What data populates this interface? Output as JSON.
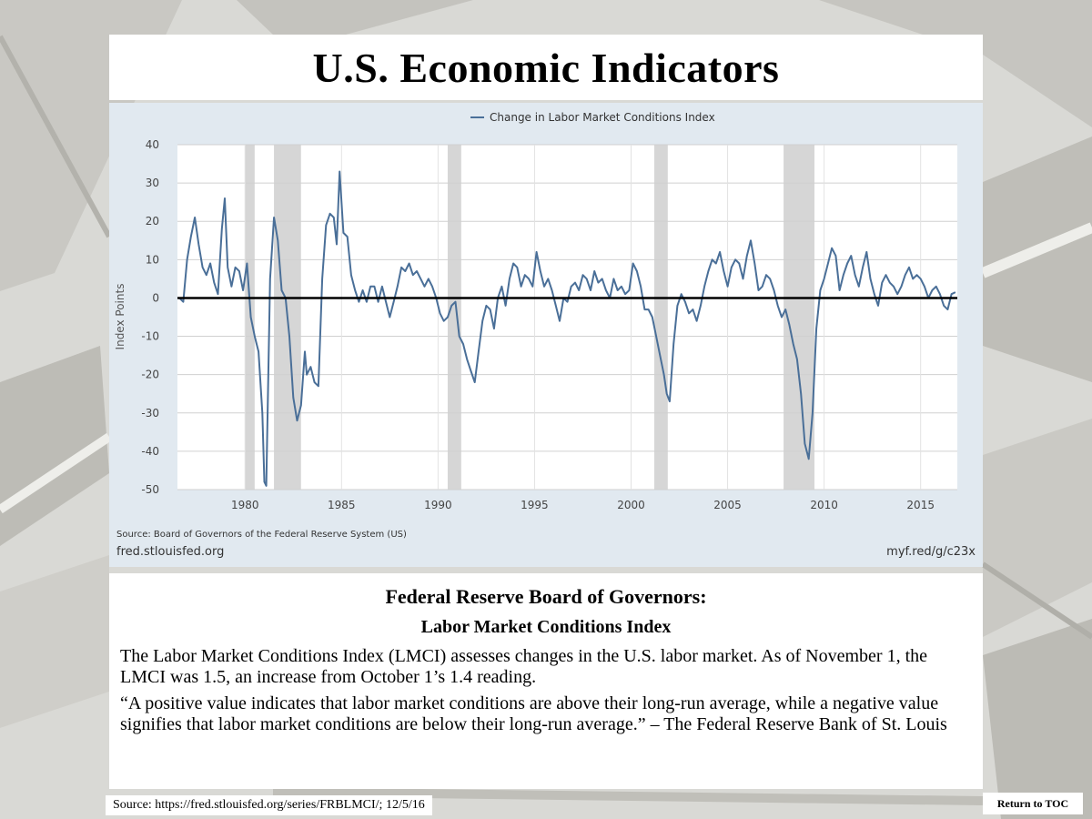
{
  "slide": {
    "title": "U.S. Economic Indicators"
  },
  "colors": {
    "series": "#4a6f98",
    "zero_line": "#000000",
    "recession_band": "#d6d6d6",
    "chart_background": "#e1e9f0",
    "plot_background": "#ffffff"
  },
  "chart_data": {
    "type": "line",
    "title": "",
    "xlabel": "",
    "ylabel": "Index Points",
    "xlim": [
      1976.5,
      2016.9
    ],
    "ylim": [
      -50,
      40
    ],
    "x_ticks": [
      1980,
      1985,
      1990,
      1995,
      2000,
      2005,
      2010,
      2015
    ],
    "y_ticks": [
      40,
      30,
      20,
      10,
      0,
      -10,
      -20,
      -30,
      -40,
      -50
    ],
    "grid": true,
    "legend_position": "top-center",
    "reference_line_y": 0,
    "recession_shading": [
      [
        1980.0,
        1980.5
      ],
      [
        1981.5,
        1982.9
      ],
      [
        1990.5,
        1991.2
      ],
      [
        2001.2,
        2001.9
      ],
      [
        2007.9,
        2009.5
      ]
    ],
    "series": [
      {
        "name": "Change in Labor Market Conditions Index",
        "points": [
          [
            1976.6,
            0
          ],
          [
            1976.8,
            -1
          ],
          [
            1977.0,
            10
          ],
          [
            1977.2,
            16
          ],
          [
            1977.4,
            21
          ],
          [
            1977.6,
            14
          ],
          [
            1977.8,
            8
          ],
          [
            1978.0,
            6
          ],
          [
            1978.2,
            9
          ],
          [
            1978.4,
            4
          ],
          [
            1978.6,
            1
          ],
          [
            1978.8,
            18
          ],
          [
            1978.95,
            26
          ],
          [
            1979.1,
            8
          ],
          [
            1979.3,
            3
          ],
          [
            1979.5,
            8
          ],
          [
            1979.7,
            7
          ],
          [
            1979.9,
            2
          ],
          [
            1980.1,
            9
          ],
          [
            1980.3,
            -5
          ],
          [
            1980.5,
            -10
          ],
          [
            1980.7,
            -14
          ],
          [
            1980.9,
            -30
          ],
          [
            1981.0,
            -48
          ],
          [
            1981.1,
            -49
          ],
          [
            1981.3,
            5
          ],
          [
            1981.5,
            21
          ],
          [
            1981.7,
            15
          ],
          [
            1981.9,
            2
          ],
          [
            1982.1,
            0
          ],
          [
            1982.3,
            -10
          ],
          [
            1982.5,
            -26
          ],
          [
            1982.7,
            -32
          ],
          [
            1982.9,
            -28
          ],
          [
            1983.1,
            -14
          ],
          [
            1983.2,
            -20
          ],
          [
            1983.4,
            -18
          ],
          [
            1983.6,
            -22
          ],
          [
            1983.8,
            -23
          ],
          [
            1984.0,
            5
          ],
          [
            1984.2,
            19
          ],
          [
            1984.4,
            22
          ],
          [
            1984.6,
            21
          ],
          [
            1984.75,
            14
          ],
          [
            1984.9,
            33
          ],
          [
            1985.1,
            17
          ],
          [
            1985.3,
            16
          ],
          [
            1985.5,
            6
          ],
          [
            1985.7,
            2
          ],
          [
            1985.9,
            -1
          ],
          [
            1986.1,
            2
          ],
          [
            1986.3,
            -1
          ],
          [
            1986.5,
            3
          ],
          [
            1986.7,
            3
          ],
          [
            1986.9,
            -1
          ],
          [
            1987.1,
            3
          ],
          [
            1987.3,
            -1
          ],
          [
            1987.5,
            -5
          ],
          [
            1987.7,
            -1
          ],
          [
            1987.9,
            3
          ],
          [
            1988.1,
            8
          ],
          [
            1988.3,
            7
          ],
          [
            1988.5,
            9
          ],
          [
            1988.7,
            6
          ],
          [
            1988.9,
            7
          ],
          [
            1989.1,
            5
          ],
          [
            1989.3,
            3
          ],
          [
            1989.5,
            5
          ],
          [
            1989.7,
            3
          ],
          [
            1989.9,
            0
          ],
          [
            1990.1,
            -4
          ],
          [
            1990.3,
            -6
          ],
          [
            1990.5,
            -5
          ],
          [
            1990.7,
            -2
          ],
          [
            1990.9,
            -1
          ],
          [
            1991.1,
            -10
          ],
          [
            1991.3,
            -12
          ],
          [
            1991.5,
            -16
          ],
          [
            1991.7,
            -19
          ],
          [
            1991.9,
            -22
          ],
          [
            1992.1,
            -14
          ],
          [
            1992.3,
            -6
          ],
          [
            1992.5,
            -2
          ],
          [
            1992.7,
            -3
          ],
          [
            1992.9,
            -8
          ],
          [
            1993.1,
            0
          ],
          [
            1993.3,
            3
          ],
          [
            1993.5,
            -2
          ],
          [
            1993.7,
            5
          ],
          [
            1993.9,
            9
          ],
          [
            1994.1,
            8
          ],
          [
            1994.3,
            3
          ],
          [
            1994.5,
            6
          ],
          [
            1994.7,
            5
          ],
          [
            1994.9,
            3
          ],
          [
            1995.1,
            12
          ],
          [
            1995.3,
            7
          ],
          [
            1995.5,
            3
          ],
          [
            1995.7,
            5
          ],
          [
            1995.9,
            2
          ],
          [
            1996.1,
            -2
          ],
          [
            1996.3,
            -6
          ],
          [
            1996.5,
            0
          ],
          [
            1996.7,
            -1
          ],
          [
            1996.9,
            3
          ],
          [
            1997.1,
            4
          ],
          [
            1997.3,
            2
          ],
          [
            1997.5,
            6
          ],
          [
            1997.7,
            5
          ],
          [
            1997.9,
            2
          ],
          [
            1998.1,
            7
          ],
          [
            1998.3,
            4
          ],
          [
            1998.5,
            5
          ],
          [
            1998.7,
            2
          ],
          [
            1998.9,
            0
          ],
          [
            1999.1,
            5
          ],
          [
            1999.3,
            2
          ],
          [
            1999.5,
            3
          ],
          [
            1999.7,
            1
          ],
          [
            1999.9,
            2
          ],
          [
            2000.1,
            9
          ],
          [
            2000.3,
            7
          ],
          [
            2000.5,
            3
          ],
          [
            2000.7,
            -3
          ],
          [
            2000.9,
            -3
          ],
          [
            2001.1,
            -5
          ],
          [
            2001.3,
            -10
          ],
          [
            2001.5,
            -15
          ],
          [
            2001.7,
            -20
          ],
          [
            2001.85,
            -25
          ],
          [
            2002.0,
            -27
          ],
          [
            2002.2,
            -12
          ],
          [
            2002.4,
            -2
          ],
          [
            2002.6,
            1
          ],
          [
            2002.8,
            -1
          ],
          [
            2003.0,
            -4
          ],
          [
            2003.2,
            -3
          ],
          [
            2003.4,
            -6
          ],
          [
            2003.6,
            -2
          ],
          [
            2003.8,
            3
          ],
          [
            2004.0,
            7
          ],
          [
            2004.2,
            10
          ],
          [
            2004.4,
            9
          ],
          [
            2004.6,
            12
          ],
          [
            2004.8,
            7
          ],
          [
            2005.0,
            3
          ],
          [
            2005.2,
            8
          ],
          [
            2005.4,
            10
          ],
          [
            2005.6,
            9
          ],
          [
            2005.8,
            5
          ],
          [
            2006.0,
            11
          ],
          [
            2006.2,
            15
          ],
          [
            2006.4,
            9
          ],
          [
            2006.6,
            2
          ],
          [
            2006.8,
            3
          ],
          [
            2007.0,
            6
          ],
          [
            2007.2,
            5
          ],
          [
            2007.4,
            2
          ],
          [
            2007.6,
            -2
          ],
          [
            2007.8,
            -5
          ],
          [
            2008.0,
            -3
          ],
          [
            2008.2,
            -7
          ],
          [
            2008.4,
            -12
          ],
          [
            2008.6,
            -16
          ],
          [
            2008.8,
            -25
          ],
          [
            2009.0,
            -38
          ],
          [
            2009.2,
            -42
          ],
          [
            2009.4,
            -30
          ],
          [
            2009.6,
            -8
          ],
          [
            2009.8,
            2
          ],
          [
            2010.0,
            5
          ],
          [
            2010.2,
            9
          ],
          [
            2010.4,
            13
          ],
          [
            2010.6,
            11
          ],
          [
            2010.8,
            2
          ],
          [
            2011.0,
            6
          ],
          [
            2011.2,
            9
          ],
          [
            2011.4,
            11
          ],
          [
            2011.6,
            6
          ],
          [
            2011.8,
            3
          ],
          [
            2012.0,
            8
          ],
          [
            2012.2,
            12
          ],
          [
            2012.4,
            5
          ],
          [
            2012.6,
            1
          ],
          [
            2012.8,
            -2
          ],
          [
            2013.0,
            4
          ],
          [
            2013.2,
            6
          ],
          [
            2013.4,
            4
          ],
          [
            2013.6,
            3
          ],
          [
            2013.8,
            1
          ],
          [
            2014.0,
            3
          ],
          [
            2014.2,
            6
          ],
          [
            2014.4,
            8
          ],
          [
            2014.6,
            5
          ],
          [
            2014.8,
            6
          ],
          [
            2015.0,
            5
          ],
          [
            2015.2,
            3
          ],
          [
            2015.4,
            0
          ],
          [
            2015.6,
            2
          ],
          [
            2015.8,
            3
          ],
          [
            2016.0,
            1
          ],
          [
            2016.2,
            -2
          ],
          [
            2016.4,
            -3
          ],
          [
            2016.6,
            1
          ],
          [
            2016.8,
            1.5
          ]
        ]
      }
    ],
    "source_note": "Source: Board of Governors of the Federal Reserve System (US)",
    "footer_left": "fred.stlouisfed.org",
    "footer_right": "myf.red/g/c23x"
  },
  "info_panel": {
    "heading": "Federal  Reserve  Board of Governors:",
    "subheading": "Labor Market Conditions Index",
    "paragraph_1": "The Labor Market Conditions Index (LMCI) assesses changes in the U.S. labor market.  As of November 1, the LMCI was 1.5, an increase from October 1’s 1.4 reading.",
    "paragraph_2": "“A positive value indicates that labor market conditions are above their long-run average, while a negative value signifies that labor market conditions are below their long-run average.” – The Federal Reserve Bank of St. Louis"
  },
  "footer": {
    "source": "Source: https://fred.stlouisfed.org/series/FRBLMCI/; 12/5/16",
    "return_label": "Return to TOC"
  }
}
